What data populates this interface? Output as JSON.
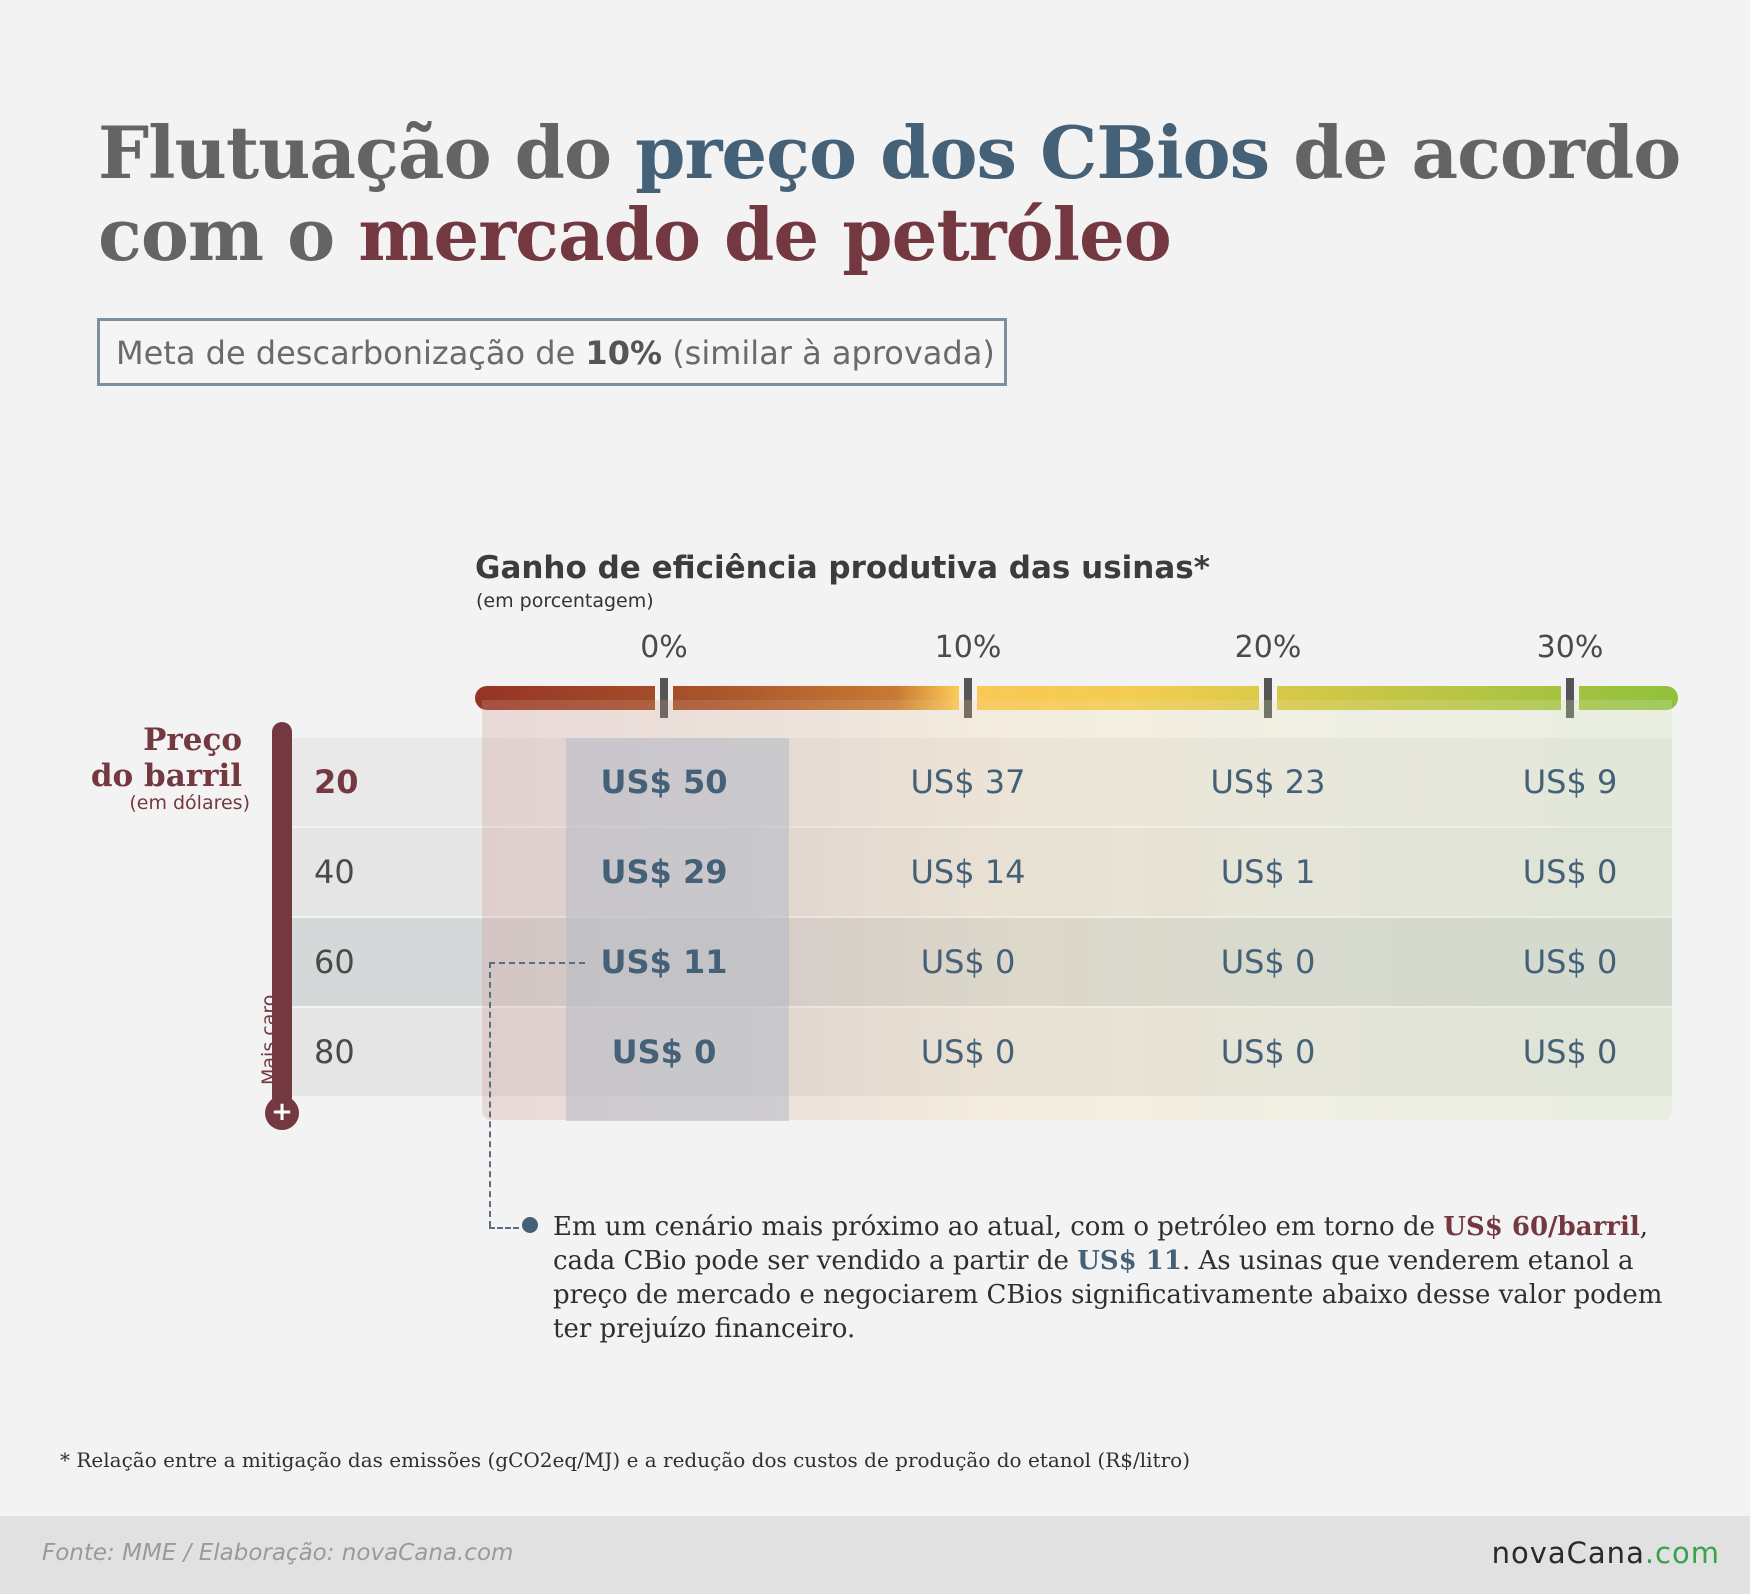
{
  "title": {
    "part1": "Flutuação do ",
    "highlight1": "preço dos CBios",
    "part2": " de acordo com o ",
    "highlight2": "mercado de petróleo"
  },
  "meta_box": {
    "prefix": "Meta de descarbonização de ",
    "bold": "10%",
    "suffix": " (similar à aprovada)"
  },
  "chart_data": {
    "type": "table",
    "title": "Flutuação do preço dos CBios de acordo com o mercado de petróleo",
    "subtitle": "Meta de descarbonização de 10% (similar à aprovada)",
    "xlabel": "Ganho de eficiência produtiva das usinas*",
    "xlabel_unit": "(em porcentagem)",
    "ylabel": "Preço do barril",
    "ylabel_unit": "(em dólares)",
    "y_direction_label": "Mais caro",
    "columns": [
      "0%",
      "10%",
      "20%",
      "30%"
    ],
    "rows": [
      {
        "label": "20",
        "values": [
          "US$ 50",
          "US$ 37",
          "US$ 23",
          "US$ 9"
        ]
      },
      {
        "label": "40",
        "values": [
          "US$ 29",
          "US$ 14",
          "US$ 1",
          "US$ 0"
        ]
      },
      {
        "label": "60",
        "values": [
          "US$ 11",
          "US$ 0",
          "US$ 0",
          "US$ 0"
        ]
      },
      {
        "label": "80",
        "values": [
          "US$ 0",
          "US$ 0",
          "US$ 0",
          "US$ 0"
        ]
      }
    ],
    "highlight_row": "60",
    "highlight_column": "0%"
  },
  "preco": {
    "line1": "Preço",
    "line2": "do barril",
    "sub": "(em dólares)"
  },
  "mais_caro": "Mais caro",
  "thermo_plus": "+",
  "callout": {
    "t1": "Em um cenário mais próximo ao atual, com o petróleo em torno de ",
    "h1": "US$ 60/barril",
    "t2": ", cada CBio pode ser vendido a partir de ",
    "h2": "US$ 11",
    "t3": ". As usinas que venderem etanol a preço de mercado e negociarem CBios significativamente abaixo desse valor podem ter prejuízo financeiro."
  },
  "footnote": "* Relação entre a mitigação das emissões (gCO2eq/MJ) e a redução dos custos de produção do etanol (R$/litro)",
  "footer": {
    "source": "Fonte: MME / Elaboração: novaCana.com",
    "logo_main": "novaCana",
    "logo_tld": ".com"
  },
  "colors": {
    "blue": "#456178",
    "red": "#743840",
    "gray_text": "#646464"
  }
}
